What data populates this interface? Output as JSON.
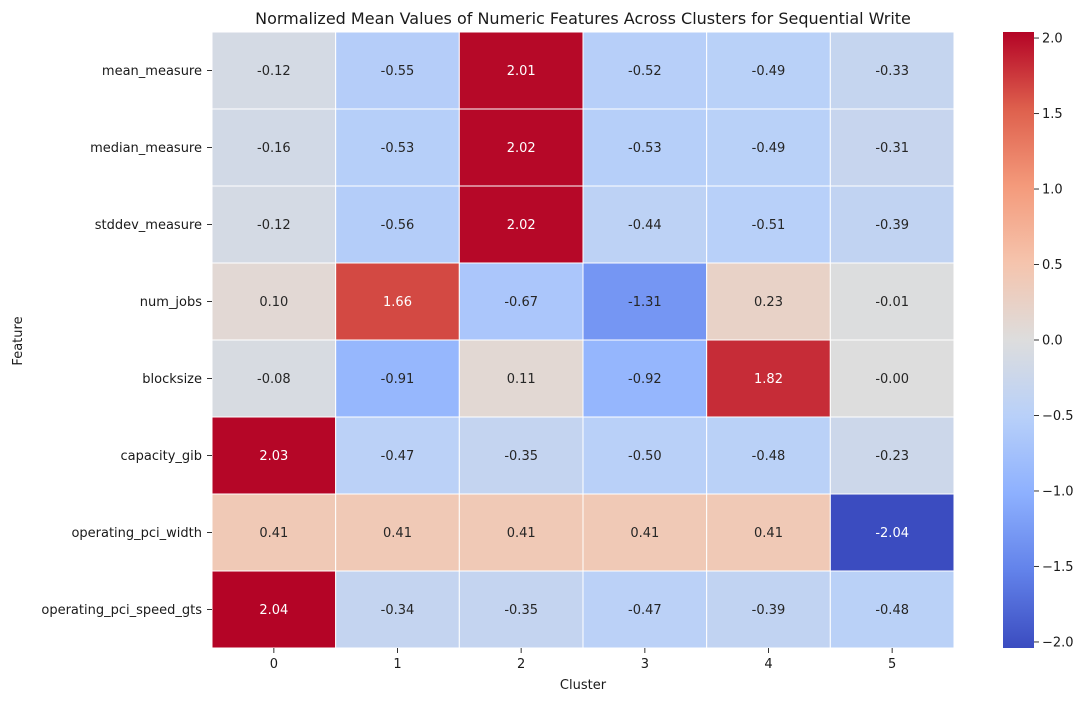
{
  "chart_data": {
    "type": "heatmap",
    "title": "Normalized Mean Values of Numeric Features Across Clusters for Sequential Write",
    "xlabel": "Cluster",
    "ylabel": "Feature",
    "x_categories": [
      "0",
      "1",
      "2",
      "3",
      "4",
      "5"
    ],
    "y_categories": [
      "mean_measure",
      "median_measure",
      "stddev_measure",
      "num_jobs",
      "blocksize",
      "capacity_gib",
      "operating_pci_width",
      "operating_pci_speed_gts"
    ],
    "values": [
      [
        -0.12,
        -0.55,
        2.01,
        -0.52,
        -0.49,
        -0.33
      ],
      [
        -0.16,
        -0.53,
        2.02,
        -0.53,
        -0.49,
        -0.31
      ],
      [
        -0.12,
        -0.56,
        2.02,
        -0.44,
        -0.51,
        -0.39
      ],
      [
        0.1,
        1.66,
        -0.67,
        -1.31,
        0.23,
        -0.01
      ],
      [
        -0.08,
        -0.91,
        0.11,
        -0.92,
        1.82,
        -0.0
      ],
      [
        2.03,
        -0.47,
        -0.35,
        -0.5,
        -0.48,
        -0.23
      ],
      [
        0.41,
        0.41,
        0.41,
        0.41,
        0.41,
        -2.04
      ],
      [
        2.04,
        -0.34,
        -0.35,
        -0.47,
        -0.39,
        -0.48
      ]
    ],
    "colormap": "coolwarm",
    "vmin": -2.04,
    "vmax": 2.04,
    "colorbar_ticks": [
      "2.0",
      "1.5",
      "1.0",
      "0.5",
      "0.0",
      "−0.5",
      "−1.0",
      "−1.5",
      "−2.0"
    ],
    "colorbar_tick_values": [
      2.0,
      1.5,
      1.0,
      0.5,
      0.0,
      -0.5,
      -1.0,
      -1.5,
      -2.0
    ],
    "annotation_format": "0.00",
    "grid_line_color": "#ffffff"
  }
}
